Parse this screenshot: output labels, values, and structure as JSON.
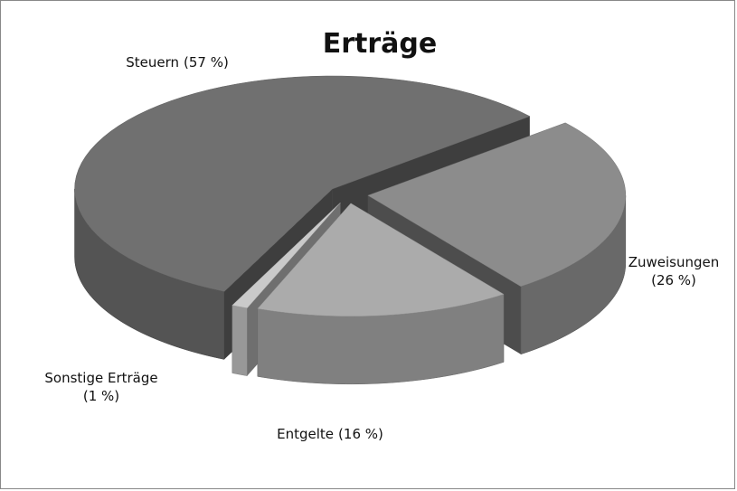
{
  "chart_data": {
    "type": "pie",
    "title": "Erträge",
    "categories": [
      "Zuweisungen",
      "Entgelte",
      "Sonstige Erträge",
      "Steuern"
    ],
    "values": [
      26,
      16,
      1,
      57
    ],
    "value_labels": [
      "(26 %)",
      "(16 %)",
      "(1 %)",
      "(57 %)"
    ],
    "colors": [
      "#8c8c8c",
      "#ababab",
      "#cacaca",
      "#707070"
    ]
  }
}
